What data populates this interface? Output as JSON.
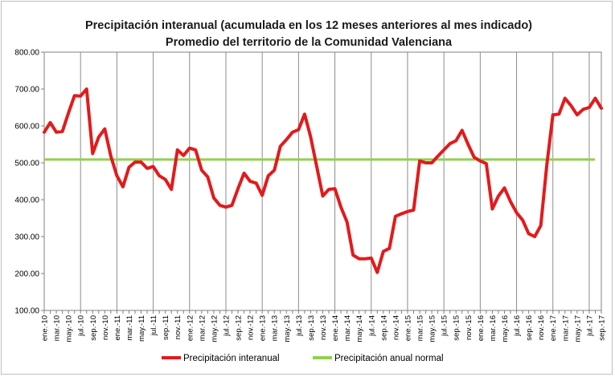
{
  "chart_data": {
    "type": "line",
    "title": "Precipitación interanual (acumulada en los 12 meses anteriores al mes indicado)",
    "subtitle": "Promedio del territorio de la Comunidad Valenciana",
    "xlabel": "",
    "ylabel": "",
    "ylim": [
      100,
      800
    ],
    "yticks": [
      "100.00",
      "200.00",
      "300.00",
      "400.00",
      "500.00",
      "600.00",
      "700.00",
      "800.00"
    ],
    "grid": "vertical",
    "legend_position": "bottom",
    "categories": [
      "ene.-10",
      "feb.-10",
      "mar.-10",
      "abr.-10",
      "may.-10",
      "jun.-10",
      "jul.-10",
      "ago.-10",
      "sep.-10",
      "oct.-10",
      "nov.-10",
      "dic.-10",
      "ene.-11",
      "feb.-11",
      "mar.-11",
      "abr.-11",
      "may.-11",
      "jun.-11",
      "jul.-11",
      "ago.-11",
      "sep.-11",
      "oct.-11",
      "nov.-11",
      "dic.-11",
      "ene.-12",
      "feb.-12",
      "mar.-12",
      "abr.-12",
      "may.-12",
      "jun.-12",
      "jul.-12",
      "ago.-12",
      "sep.-12",
      "oct.-12",
      "nov.-12",
      "dic.-12",
      "ene.-13",
      "feb.-13",
      "mar.-13",
      "abr.-13",
      "may.-13",
      "jun.-13",
      "jul.-13",
      "ago.-13",
      "sep.-13",
      "oct.-13",
      "nov.-13",
      "dic.-13",
      "ene.-14",
      "feb.-14",
      "mar.-14",
      "abr.-14",
      "may.-14",
      "jun.-14",
      "jul.-14",
      "ago.-14",
      "sep.-14",
      "oct.-14",
      "nov.-14",
      "dic.-14",
      "ene.-15",
      "feb.-15",
      "mar.-15",
      "abr.-15",
      "may.-15",
      "jun.-15",
      "jul.-15",
      "ago.-15",
      "sep.-15",
      "oct.-15",
      "nov.-15",
      "dic.-15",
      "ene.-16",
      "feb.-16",
      "mar.-16",
      "abr.-16",
      "may.-16",
      "jun.-16",
      "jul.-16",
      "ago.-16",
      "sep.-16",
      "oct.-16",
      "nov.-16",
      "dic.-16",
      "ene.-17",
      "feb.-17",
      "mar.-17",
      "abr.-17",
      "may.-17",
      "jun.-17",
      "jul.-17",
      "ago.-17",
      "sep.-17"
    ],
    "xtick_labels": [
      "ene.-10",
      "mar.-10",
      "may.-10",
      "jul.-10",
      "sep.-10",
      "nov.-10",
      "ene.-11",
      "mar.-11",
      "may.-11",
      "jul.-11",
      "sep.-11",
      "nov.-11",
      "ene.-12",
      "mar.-12",
      "may.-12",
      "jul.-12",
      "sep.-12",
      "nov.-12",
      "ene.-13",
      "mar.-13",
      "may.-13",
      "jul.-13",
      "sep.-13",
      "nov.-13",
      "ene.-14",
      "mar.-14",
      "may.-14",
      "jul.-14",
      "sep.-14",
      "nov.-14",
      "ene.-15",
      "mar.-15",
      "may.-15",
      "jul.-15",
      "sep.-15",
      "nov.-15",
      "ene.-16",
      "mar.-16",
      "may.-16",
      "jul.-16",
      "sep.-16",
      "nov.-16",
      "ene.-17",
      "mar.-17",
      "may.-17",
      "jul.-17",
      "sep.-17"
    ],
    "series": [
      {
        "name": "Precipitación interanual",
        "color": "#e31a1c",
        "values": [
          583,
          609,
          583,
          585,
          635,
          682,
          681,
          700,
          525,
          570,
          592,
          518,
          465,
          435,
          488,
          502,
          502,
          485,
          490,
          465,
          455,
          428,
          535,
          520,
          540,
          535,
          480,
          462,
          405,
          385,
          380,
          385,
          430,
          472,
          450,
          445,
          412,
          465,
          480,
          545,
          563,
          583,
          590,
          632,
          570,
          490,
          410,
          428,
          430,
          380,
          340,
          250,
          240,
          240,
          242,
          203,
          260,
          268,
          355,
          362,
          368,
          372,
          505,
          500,
          500,
          518,
          535,
          552,
          560,
          588,
          550,
          515,
          505,
          498,
          375,
          410,
          432,
          395,
          365,
          345,
          308,
          300,
          330,
          495,
          630,
          632,
          675,
          655,
          630,
          645,
          650,
          675,
          648
        ]
      },
      {
        "name": "Precipitación anual normal",
        "color": "#92d050",
        "constant": 509
      }
    ]
  }
}
